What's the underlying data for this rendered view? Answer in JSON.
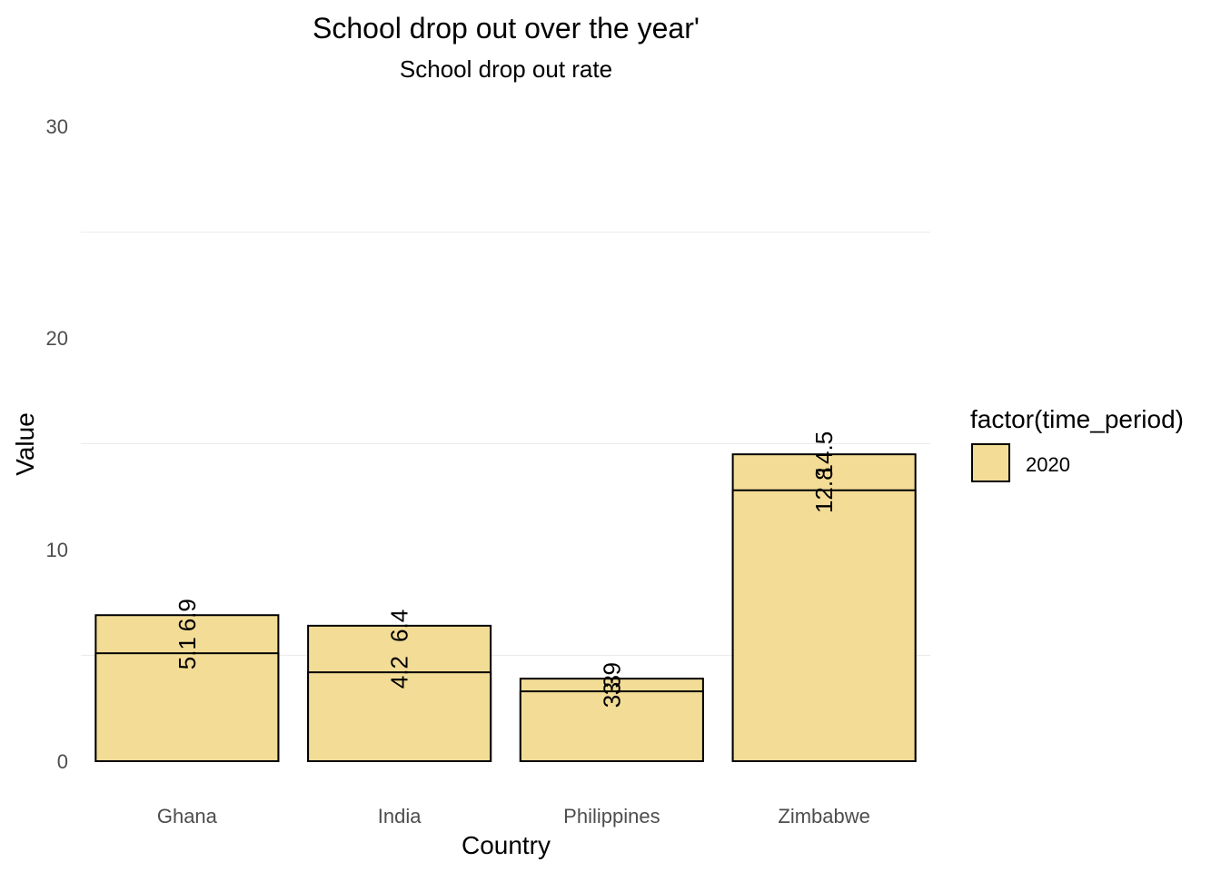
{
  "chart_data": {
    "type": "bar",
    "title": "School drop out over the year'",
    "subtitle": "School drop out rate",
    "xlabel": "Country",
    "ylabel": "Value",
    "ylim": [
      0,
      30
    ],
    "yticks": [
      0,
      10,
      20,
      30
    ],
    "grid": true,
    "legend_position": "right",
    "legend_title": "factor(time_period)",
    "categories": [
      "Ghana",
      "India",
      "Philippines",
      "Zimbabwe"
    ],
    "series": [
      {
        "name": "2020",
        "color": "#F3DC96",
        "values": [
          [
            5.1,
            6.9
          ],
          [
            4.2,
            6.4
          ],
          [
            3.3,
            3.9
          ],
          [
            12.8,
            14.5
          ]
        ]
      }
    ],
    "data_labels": [
      [
        "5.1",
        "6.9"
      ],
      [
        "4.2",
        "6.4"
      ],
      [
        "3.3",
        "3.9"
      ],
      [
        "12.8",
        "14.5"
      ]
    ]
  }
}
